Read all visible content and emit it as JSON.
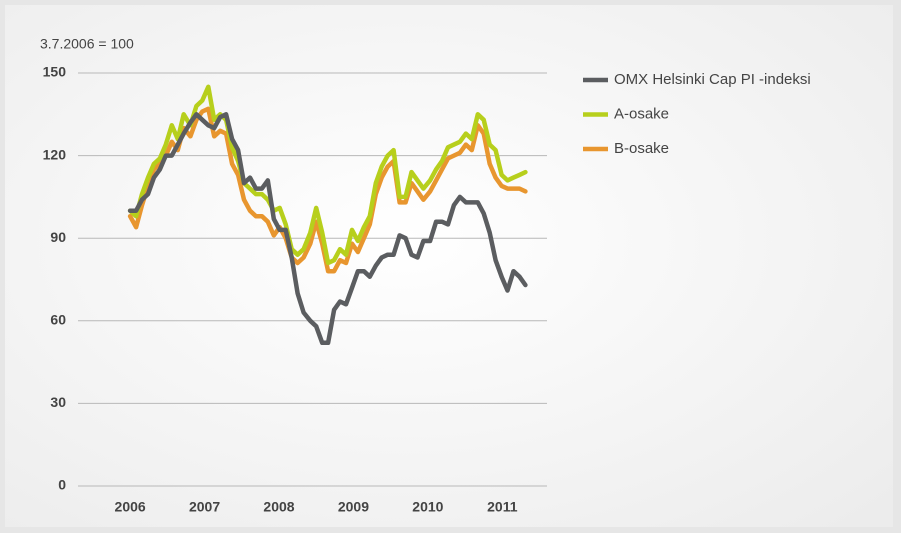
{
  "chart_data": {
    "type": "line",
    "annotation": "3.7.2006 = 100",
    "x": [
      2006.5,
      2006.58,
      2006.66,
      2006.74,
      2006.82,
      2006.9,
      2006.98,
      2007.06,
      2007.14,
      2007.22,
      2007.31,
      2007.39,
      2007.47,
      2007.55,
      2007.63,
      2007.71,
      2007.79,
      2007.87,
      2007.95,
      2008.03,
      2008.11,
      2008.19,
      2008.27,
      2008.35,
      2008.43,
      2008.51,
      2008.59,
      2008.67,
      2008.75,
      2008.83,
      2008.92,
      2009.0,
      2009.08,
      2009.16,
      2009.24,
      2009.32,
      2009.4,
      2009.48,
      2009.56,
      2009.64,
      2009.72,
      2009.8,
      2009.88,
      2009.96,
      2010.04,
      2010.12,
      2010.2,
      2010.28,
      2010.36,
      2010.44,
      2010.53,
      2010.61,
      2010.69,
      2010.77,
      2010.85,
      2010.93,
      2011.01,
      2011.09,
      2011.17,
      2011.25,
      2011.33,
      2011.41,
      2011.49,
      2011.57,
      2011.65,
      2011.73,
      2011.81
    ],
    "series": [
      {
        "name": "OMX Helsinki Cap PI -indeksi",
        "color": "#5b5d60",
        "values": [
          100,
          100,
          104,
          106,
          112,
          115,
          120,
          120,
          124,
          128,
          132,
          135,
          133,
          131,
          130,
          134,
          135,
          126,
          122,
          110,
          112,
          108,
          108,
          111,
          97,
          93,
          93,
          83,
          70,
          63,
          60,
          58,
          52,
          52,
          64,
          67,
          66,
          72,
          78,
          78,
          76,
          80,
          83,
          84,
          84,
          91,
          90,
          84,
          83,
          89,
          89,
          96,
          96,
          95,
          102,
          105,
          103,
          103,
          103,
          99,
          92,
          82,
          76,
          71,
          78,
          76,
          73
        ]
      },
      {
        "name": "A-osake",
        "color": "#b7cf1c",
        "values": [
          100,
          98,
          106,
          112,
          117,
          119,
          124,
          131,
          126,
          135,
          131,
          138,
          140,
          145,
          133,
          135,
          133,
          123,
          118,
          110,
          108,
          106,
          106,
          104,
          100,
          101,
          95,
          86,
          84,
          86,
          92,
          101,
          92,
          81,
          82,
          86,
          84,
          93,
          89,
          94,
          98,
          110,
          116,
          120,
          122,
          105,
          105,
          114,
          111,
          108,
          111,
          115,
          118,
          123,
          124,
          125,
          128,
          126,
          135,
          133,
          124,
          122,
          113,
          111,
          112,
          113,
          114
        ]
      },
      {
        "name": "B-osake",
        "color": "#e8962f",
        "values": [
          98,
          94,
          102,
          109,
          115,
          117,
          120,
          125,
          122,
          130,
          127,
          133,
          136,
          137,
          127,
          129,
          128,
          117,
          113,
          104,
          100,
          98,
          98,
          96,
          91,
          94,
          90,
          83,
          81,
          83,
          88,
          96,
          88,
          78,
          78,
          82,
          81,
          88,
          85,
          90,
          95,
          106,
          112,
          116,
          118,
          103,
          103,
          110,
          107,
          104,
          107,
          111,
          115,
          119,
          120,
          121,
          124,
          122,
          131,
          128,
          117,
          112,
          109,
          108,
          108,
          108,
          107
        ]
      }
    ],
    "xlim": [
      2005.8,
      2012.1
    ],
    "xticks": [
      {
        "value": 2006.5,
        "label": "2006"
      },
      {
        "value": 2007.5,
        "label": "2007"
      },
      {
        "value": 2008.5,
        "label": "2008"
      },
      {
        "value": 2009.5,
        "label": "2009"
      },
      {
        "value": 2010.5,
        "label": "2010"
      },
      {
        "value": 2011.5,
        "label": "2011"
      }
    ],
    "ylim": [
      0,
      150
    ],
    "yticks": [
      0,
      30,
      60,
      90,
      120,
      150
    ],
    "grid": true,
    "legend": "right"
  }
}
